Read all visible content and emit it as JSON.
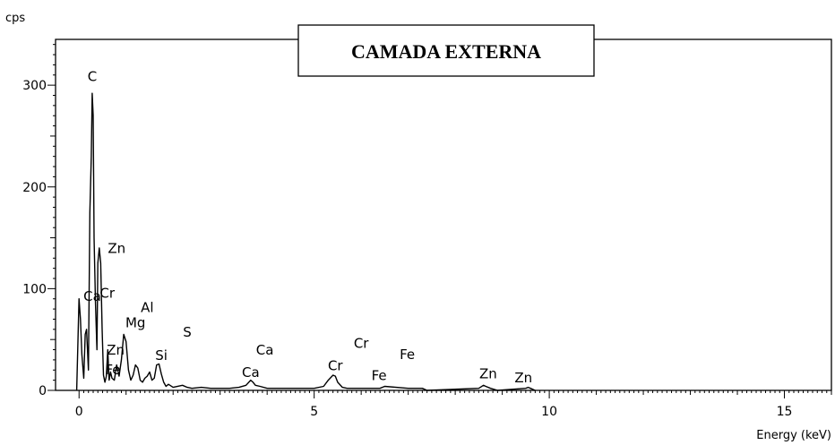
{
  "chart_data": {
    "type": "line",
    "title": "CAMADA EXTERNA",
    "ylabel": "cps",
    "xlabel": "Energy (keV)",
    "xlim": [
      -0.5,
      16
    ],
    "ylim": [
      0,
      345
    ],
    "x_ticks": [
      0,
      5,
      10,
      15
    ],
    "y_ticks": [
      0,
      100,
      200,
      300
    ],
    "x_tick_labels": [
      "0",
      "5",
      "10",
      "15"
    ],
    "y_tick_labels": [
      "0",
      "100",
      "200",
      "300"
    ],
    "grid": false,
    "legend": "none",
    "series": [
      {
        "color": "#000000",
        "x": [
          -0.05,
          0.0,
          0.03,
          0.06,
          0.1,
          0.13,
          0.16,
          0.2,
          0.23,
          0.26,
          0.28,
          0.3,
          0.32,
          0.35,
          0.38,
          0.4,
          0.43,
          0.46,
          0.49,
          0.52,
          0.55,
          0.58,
          0.61,
          0.64,
          0.67,
          0.7,
          0.75,
          0.8,
          0.85,
          0.9,
          0.95,
          1.0,
          1.05,
          1.1,
          1.15,
          1.2,
          1.25,
          1.3,
          1.35,
          1.4,
          1.45,
          1.5,
          1.55,
          1.6,
          1.65,
          1.7,
          1.75,
          1.8,
          1.85,
          1.9,
          2.0,
          2.2,
          2.3,
          2.4,
          2.6,
          2.8,
          3.0,
          3.2,
          3.4,
          3.55,
          3.65,
          3.7,
          3.75,
          3.85,
          4.0,
          4.5,
          5.0,
          5.2,
          5.3,
          5.4,
          5.45,
          5.5,
          5.6,
          5.7,
          6.0,
          6.4,
          6.5,
          7.0,
          7.3,
          7.4,
          8.5,
          8.6,
          8.65,
          8.75,
          8.9,
          9.5,
          9.55,
          9.6,
          9.7
        ],
        "y": [
          0,
          90,
          70,
          35,
          12,
          55,
          60,
          20,
          175,
          230,
          292,
          270,
          150,
          85,
          40,
          125,
          140,
          125,
          60,
          15,
          8,
          14,
          40,
          10,
          18,
          12,
          10,
          25,
          14,
          30,
          55,
          48,
          20,
          10,
          15,
          25,
          22,
          10,
          8,
          12,
          14,
          18,
          10,
          12,
          25,
          26,
          16,
          8,
          4,
          6,
          3,
          5,
          3,
          2,
          3,
          2,
          2,
          2,
          3,
          5,
          10,
          8,
          5,
          4,
          2,
          2,
          2,
          4,
          10,
          15,
          14,
          8,
          3,
          2,
          2,
          2,
          4,
          2,
          2,
          0,
          2,
          5,
          4,
          2,
          0,
          2,
          3,
          2,
          0
        ]
      }
    ],
    "annotations": [
      {
        "text": "C",
        "x": 0.28,
        "y": 304
      },
      {
        "text": "Zn",
        "x": 0.8,
        "y": 135
      },
      {
        "text": "Cr",
        "x": 0.6,
        "y": 91
      },
      {
        "text": "Ca",
        "x": 0.28,
        "y": 88
      },
      {
        "text": "Al",
        "x": 1.45,
        "y": 77
      },
      {
        "text": "Mg",
        "x": 1.2,
        "y": 62
      },
      {
        "text": "S",
        "x": 2.3,
        "y": 53
      },
      {
        "text": "Zn",
        "x": 0.78,
        "y": 35
      },
      {
        "text": "Si",
        "x": 1.75,
        "y": 30
      },
      {
        "text": "Fe",
        "x": 0.72,
        "y": 16
      },
      {
        "text": "Ca",
        "x": 3.95,
        "y": 35
      },
      {
        "text": "Ca",
        "x": 3.65,
        "y": 13
      },
      {
        "text": "Cr",
        "x": 6.0,
        "y": 42
      },
      {
        "text": "Cr",
        "x": 5.45,
        "y": 20
      },
      {
        "text": "Fe",
        "x": 6.98,
        "y": 31
      },
      {
        "text": "Fe",
        "x": 6.38,
        "y": 10
      },
      {
        "text": "Zn",
        "x": 8.7,
        "y": 12
      },
      {
        "text": "Zn",
        "x": 9.45,
        "y": 8
      }
    ]
  }
}
